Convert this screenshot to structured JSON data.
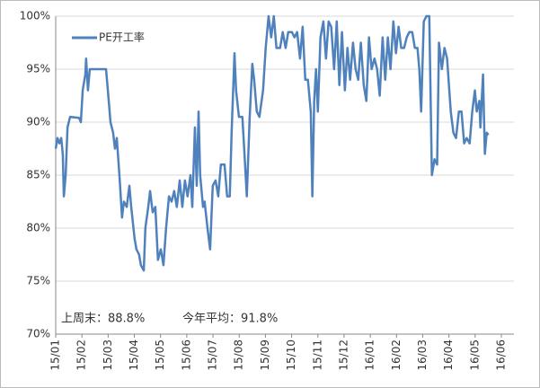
{
  "chart_data": {
    "type": "line",
    "legend_position": "top-left",
    "grid": true,
    "series": [
      {
        "name": "PE开工率",
        "color": "#4f81bd",
        "x": [
          0,
          0.07,
          0.14,
          0.21,
          0.27,
          0.31,
          0.38,
          0.45,
          0.55,
          0.89,
          0.96,
          1.03,
          1.13,
          1.16,
          1.23,
          1.3,
          1.92,
          1.99,
          2.09,
          2.19,
          2.26,
          2.33,
          2.43,
          2.53,
          2.6,
          2.71,
          2.81,
          2.88,
          3.01,
          3.08,
          3.18,
          3.25,
          3.36,
          3.42,
          3.53,
          3.6,
          3.7,
          3.8,
          3.9,
          4.01,
          4.11,
          4.21,
          4.32,
          4.42,
          4.52,
          4.62,
          4.73,
          4.83,
          4.93,
          5.03,
          5.14,
          5.21,
          5.31,
          5.38,
          5.45,
          5.51,
          5.62,
          5.68,
          5.79,
          5.89,
          5.99,
          6.1,
          6.2,
          6.3,
          6.44,
          6.54,
          6.64,
          6.71,
          6.82,
          6.88,
          6.99,
          7.12,
          7.19,
          7.29,
          7.4,
          7.5,
          7.57,
          7.67,
          7.77,
          7.91,
          8.01,
          8.12,
          8.22,
          8.32,
          8.42,
          8.56,
          8.66,
          8.77,
          8.87,
          9.01,
          9.11,
          9.21,
          9.32,
          9.42,
          9.52,
          9.62,
          9.73,
          9.79,
          9.86,
          9.93,
          10.0,
          10.1,
          10.21,
          10.31,
          10.41,
          10.51,
          10.62,
          10.72,
          10.82,
          10.92,
          11.03,
          11.13,
          11.23,
          11.34,
          11.44,
          11.54,
          11.64,
          11.75,
          11.85,
          11.95,
          12.05,
          12.16,
          12.26,
          12.36,
          12.47,
          12.57,
          12.67,
          12.77,
          12.88,
          12.98,
          13.08,
          13.18,
          13.29,
          13.39,
          13.49,
          13.6,
          13.7,
          13.8,
          13.87,
          13.94,
          14.04,
          14.14,
          14.25,
          14.35,
          14.45,
          14.55,
          14.62,
          14.73,
          14.83,
          14.93,
          15.07,
          15.17,
          15.27,
          15.38,
          15.48,
          15.58,
          15.68,
          15.79,
          15.89,
          15.99,
          16.06,
          16.16,
          16.2,
          16.3,
          16.37,
          16.44,
          16.51
        ],
        "values": [
          87.5,
          88.5,
          88,
          88.5,
          87,
          83,
          85,
          89.5,
          90.5,
          90.4,
          90,
          93,
          94.5,
          96,
          93,
          95,
          95,
          93,
          90,
          89,
          87.5,
          88.5,
          85,
          81,
          82.5,
          82,
          84,
          82,
          79,
          78,
          77.5,
          76.5,
          76,
          80,
          82,
          83.5,
          81.5,
          82,
          77,
          78,
          76.5,
          80,
          83,
          82.5,
          83.5,
          82,
          84.5,
          82,
          84.5,
          83,
          85,
          82,
          89.5,
          84,
          91,
          85,
          82,
          82.5,
          80,
          78,
          84,
          84.5,
          83,
          86,
          86,
          83,
          83,
          89,
          96.5,
          93,
          90.5,
          90.5,
          87.5,
          83,
          90.5,
          95.5,
          94,
          91,
          90.5,
          93,
          97,
          100,
          98,
          100,
          97,
          97,
          98.5,
          97,
          98.5,
          98.5,
          98,
          98.5,
          96,
          99,
          94,
          94,
          91,
          83,
          92,
          95,
          91,
          98,
          99.5,
          96,
          99.5,
          99,
          95,
          99.5,
          93.5,
          98.5,
          93,
          97,
          94,
          97.5,
          95,
          94,
          97.5,
          93.5,
          92,
          98,
          95,
          96,
          95,
          92.5,
          98,
          94,
          98,
          95,
          99.5,
          96.5,
          99,
          97,
          97,
          98,
          98.5,
          98.5,
          97,
          97,
          95,
          91,
          99.5,
          100,
          100,
          85,
          86.5,
          86,
          97.5,
          95,
          97,
          96,
          91,
          89,
          88.5,
          91,
          91,
          88,
          88.5,
          88,
          91,
          93,
          91,
          92,
          89.5,
          94.5,
          87,
          89,
          88.8
        ]
      }
    ],
    "xlim": [
      0,
      17
    ],
    "xticks": [
      {
        "value": 0,
        "label": "15/01"
      },
      {
        "value": 1,
        "label": "15/02"
      },
      {
        "value": 2,
        "label": "15/03"
      },
      {
        "value": 3,
        "label": "15/04"
      },
      {
        "value": 4,
        "label": "15/05"
      },
      {
        "value": 5,
        "label": "15/06"
      },
      {
        "value": 6,
        "label": "15/07"
      },
      {
        "value": 7,
        "label": "15/08"
      },
      {
        "value": 8,
        "label": "15/09"
      },
      {
        "value": 9,
        "label": "15/10"
      },
      {
        "value": 10,
        "label": "15/11"
      },
      {
        "value": 11,
        "label": "15/12"
      },
      {
        "value": 12,
        "label": "16/01"
      },
      {
        "value": 13,
        "label": "16/02"
      },
      {
        "value": 14,
        "label": "16/03"
      },
      {
        "value": 15,
        "label": "16/04"
      },
      {
        "value": 16,
        "label": "16/05"
      },
      {
        "value": 17,
        "label": "16/06"
      }
    ],
    "ylim": [
      70,
      100
    ],
    "yticks": [
      {
        "value": 70,
        "label": "70%"
      },
      {
        "value": 75,
        "label": "75%"
      },
      {
        "value": 80,
        "label": "80%"
      },
      {
        "value": 85,
        "label": "85%"
      },
      {
        "value": 90,
        "label": "90%"
      },
      {
        "value": 95,
        "label": "95%"
      },
      {
        "value": 100,
        "label": "100%"
      }
    ],
    "annotations": [
      "上周末：88.8%",
      "今年平均：91.8%"
    ]
  }
}
